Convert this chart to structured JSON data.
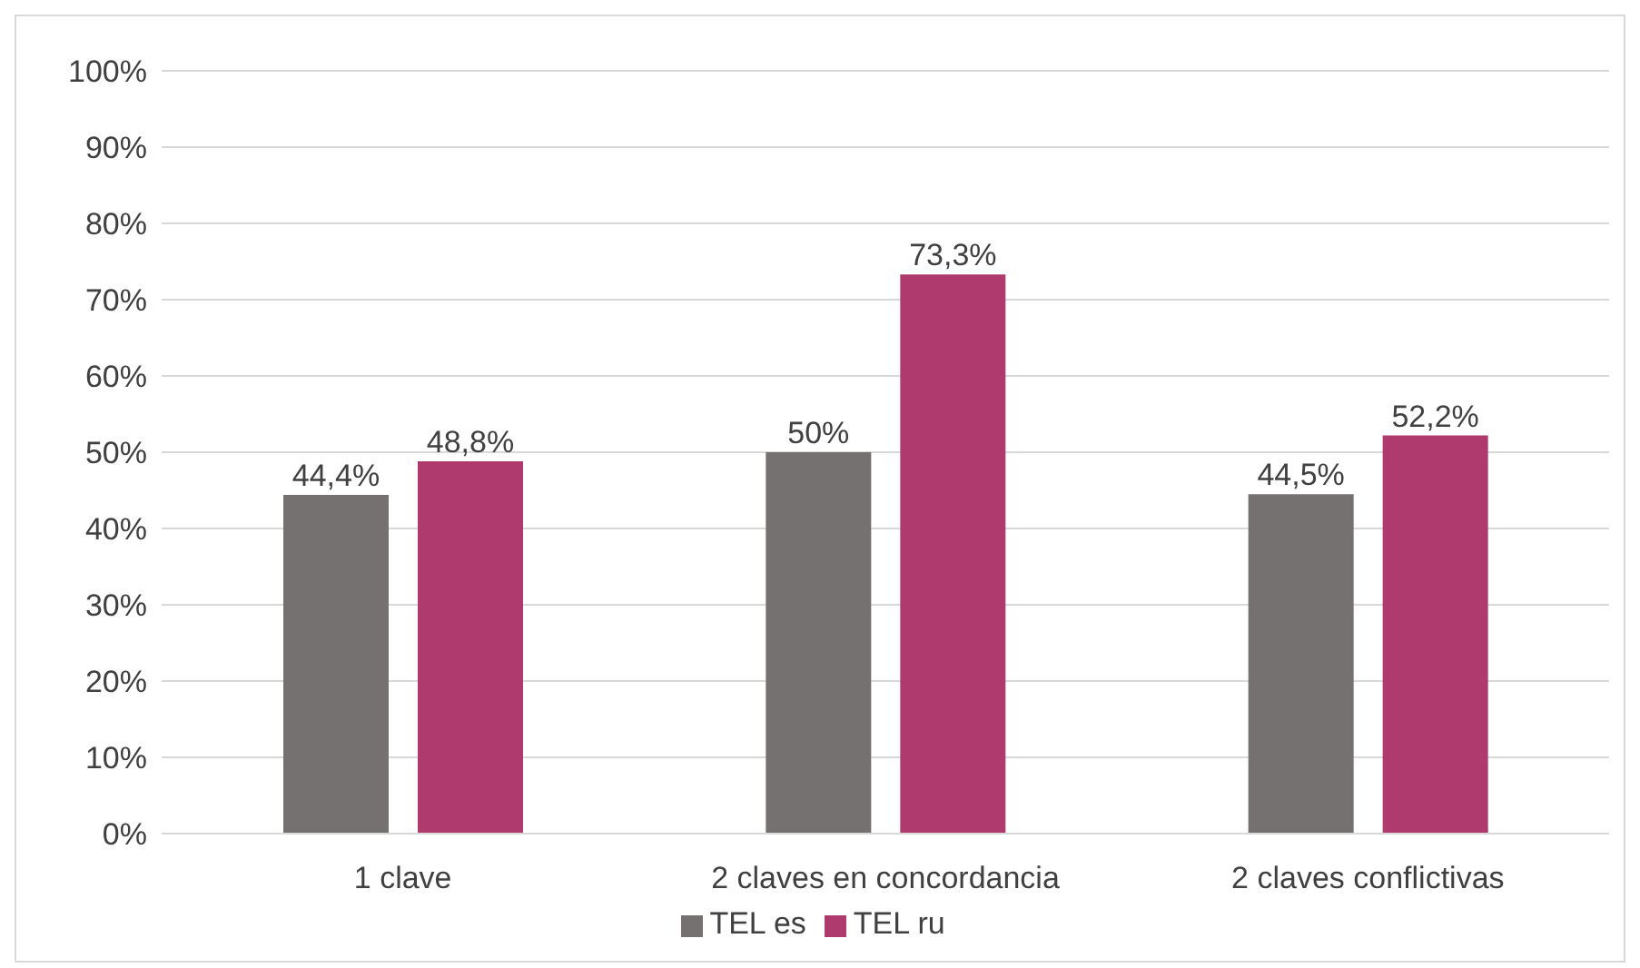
{
  "chart_data": {
    "type": "bar",
    "categories": [
      "1 clave",
      "2 claves en concordancia",
      "2 claves conflictivas"
    ],
    "series": [
      {
        "name": "TEL es",
        "color": "#767171",
        "values": [
          44.4,
          50,
          44.5
        ],
        "value_labels": [
          "44,4%",
          "50%",
          "44,5%"
        ]
      },
      {
        "name": "TEL ru",
        "color": "#ae3a6e",
        "values": [
          48.8,
          73.3,
          52.2
        ],
        "value_labels": [
          "48,8%",
          "73,3%",
          "52,2%"
        ]
      }
    ],
    "ylim": [
      0,
      100
    ],
    "yticks": [
      {
        "value": 0,
        "label": "0%"
      },
      {
        "value": 10,
        "label": "10%"
      },
      {
        "value": 20,
        "label": "20%"
      },
      {
        "value": 30,
        "label": "30%"
      },
      {
        "value": 40,
        "label": "40%"
      },
      {
        "value": 50,
        "label": "50%"
      },
      {
        "value": 60,
        "label": "60%"
      },
      {
        "value": 70,
        "label": "70%"
      },
      {
        "value": 80,
        "label": "80%"
      },
      {
        "value": 90,
        "label": "90%"
      },
      {
        "value": 100,
        "label": "100%"
      }
    ],
    "grid": "y",
    "legend": "bottom"
  }
}
